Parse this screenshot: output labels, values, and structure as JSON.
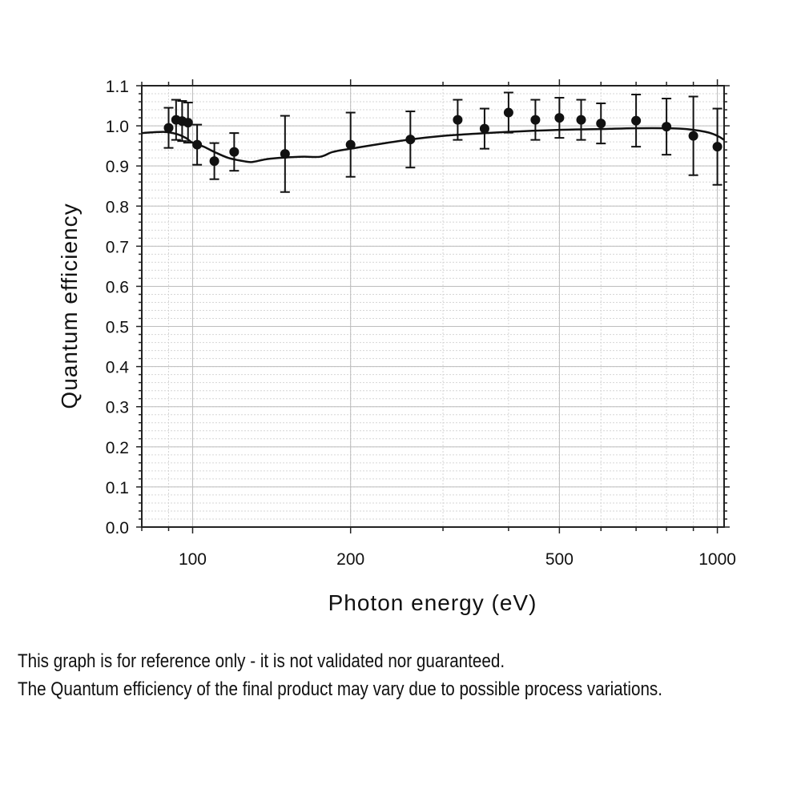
{
  "chart_data": {
    "type": "scatter",
    "xlabel": "Photon energy (eV)",
    "ylabel": "Quantum efficiency",
    "x_scale": "log",
    "xlim": [
      80,
      1030
    ],
    "ylim": [
      0.0,
      1.1
    ],
    "grid": true,
    "x_ticks": [
      {
        "value": 100,
        "label": "100"
      },
      {
        "value": 200,
        "label": "200"
      },
      {
        "value": 500,
        "label": "500"
      },
      {
        "value": 1000,
        "label": "1000"
      }
    ],
    "y_ticks": [
      {
        "value": 0.0,
        "label": "0.0"
      },
      {
        "value": 0.1,
        "label": "0.1"
      },
      {
        "value": 0.2,
        "label": "0.2"
      },
      {
        "value": 0.3,
        "label": "0.3"
      },
      {
        "value": 0.4,
        "label": "0.4"
      },
      {
        "value": 0.5,
        "label": "0.5"
      },
      {
        "value": 0.6,
        "label": "0.6"
      },
      {
        "value": 0.7,
        "label": "0.7"
      },
      {
        "value": 0.8,
        "label": "0.8"
      },
      {
        "value": 0.9,
        "label": "0.9"
      },
      {
        "value": 1.0,
        "label": "1.0"
      },
      {
        "value": 1.1,
        "label": "1.1"
      }
    ],
    "points": [
      {
        "x": 90,
        "y": 0.995,
        "err": 0.05
      },
      {
        "x": 93,
        "y": 1.015,
        "err": 0.05
      },
      {
        "x": 95.5,
        "y": 1.012,
        "err": 0.05
      },
      {
        "x": 98,
        "y": 1.008,
        "err": 0.05
      },
      {
        "x": 102,
        "y": 0.953,
        "err": 0.05
      },
      {
        "x": 110,
        "y": 0.912,
        "err": 0.045
      },
      {
        "x": 120,
        "y": 0.935,
        "err": 0.047
      },
      {
        "x": 150,
        "y": 0.93,
        "err": 0.095
      },
      {
        "x": 200,
        "y": 0.953,
        "err": 0.08
      },
      {
        "x": 260,
        "y": 0.966,
        "err": 0.07
      },
      {
        "x": 320,
        "y": 1.015,
        "err": 0.05
      },
      {
        "x": 360,
        "y": 0.993,
        "err": 0.05
      },
      {
        "x": 400,
        "y": 1.033,
        "err": 0.05
      },
      {
        "x": 450,
        "y": 1.015,
        "err": 0.05
      },
      {
        "x": 500,
        "y": 1.02,
        "err": 0.05
      },
      {
        "x": 550,
        "y": 1.015,
        "err": 0.05
      },
      {
        "x": 600,
        "y": 1.006,
        "err": 0.05
      },
      {
        "x": 700,
        "y": 1.013,
        "err": 0.065
      },
      {
        "x": 800,
        "y": 0.998,
        "err": 0.07
      },
      {
        "x": 900,
        "y": 0.975,
        "err": 0.098
      },
      {
        "x": 1000,
        "y": 0.948,
        "err": 0.095
      }
    ],
    "model_curve": [
      {
        "x": 80,
        "y": 0.982
      },
      {
        "x": 88,
        "y": 0.985
      },
      {
        "x": 93,
        "y": 0.98
      },
      {
        "x": 97,
        "y": 0.97
      },
      {
        "x": 100,
        "y": 0.958
      },
      {
        "x": 105,
        "y": 0.948
      },
      {
        "x": 110,
        "y": 0.935
      },
      {
        "x": 117,
        "y": 0.92
      },
      {
        "x": 125,
        "y": 0.912
      },
      {
        "x": 130,
        "y": 0.91
      },
      {
        "x": 140,
        "y": 0.918
      },
      {
        "x": 160,
        "y": 0.923
      },
      {
        "x": 175,
        "y": 0.923
      },
      {
        "x": 185,
        "y": 0.935
      },
      {
        "x": 200,
        "y": 0.943
      },
      {
        "x": 250,
        "y": 0.963
      },
      {
        "x": 300,
        "y": 0.975
      },
      {
        "x": 400,
        "y": 0.985
      },
      {
        "x": 500,
        "y": 0.99
      },
      {
        "x": 600,
        "y": 0.992
      },
      {
        "x": 700,
        "y": 0.994
      },
      {
        "x": 850,
        "y": 0.993
      },
      {
        "x": 950,
        "y": 0.985
      },
      {
        "x": 1000,
        "y": 0.975
      },
      {
        "x": 1030,
        "y": 0.965
      }
    ]
  },
  "captions": {
    "line1": "This graph is for reference only - it is not validated nor guaranteed.",
    "line2": "The Quantum efficiency of the final product may vary due to possible process variations."
  }
}
